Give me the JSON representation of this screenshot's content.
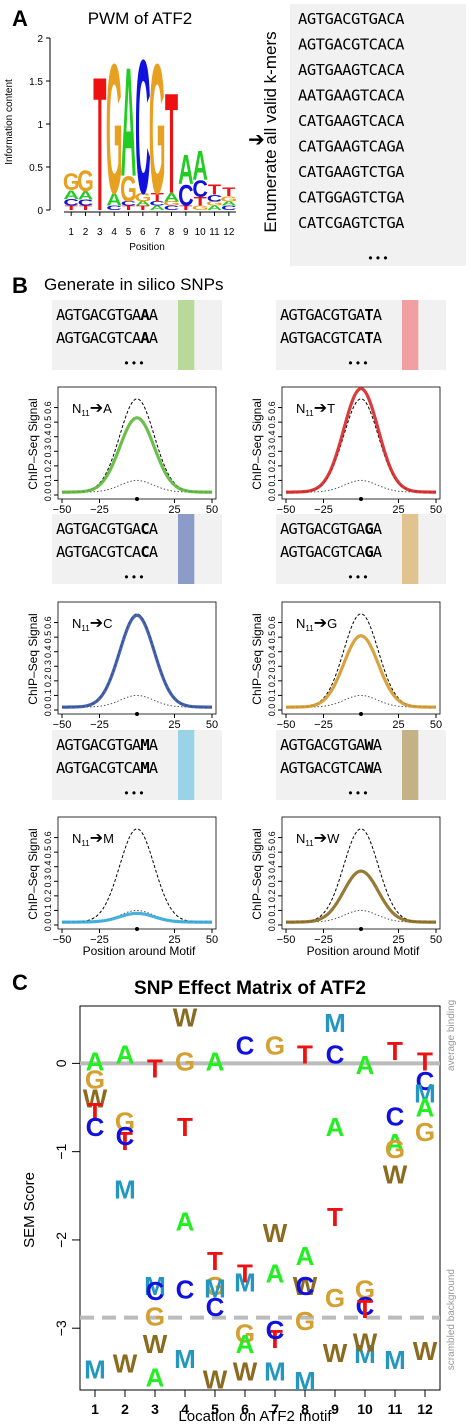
{
  "panel_a": {
    "label": "A",
    "logo": {
      "title": "PWM of ATF2",
      "ylabel": "Information content",
      "xlabel": "Position",
      "ylim": [
        0,
        2
      ],
      "yticks": [
        "0",
        "0.5",
        "1",
        "1.5",
        "2"
      ],
      "positions": [
        "1",
        "2",
        "3",
        "4",
        "5",
        "6",
        "7",
        "8",
        "9",
        "10",
        "11",
        "12"
      ],
      "stacks": [
        [
          [
            "T",
            0.05
          ],
          [
            "C",
            0.08
          ],
          [
            "A",
            0.1
          ],
          [
            "G",
            0.2
          ]
        ],
        [
          [
            "T",
            0.05
          ],
          [
            "C",
            0.07
          ],
          [
            "A",
            0.1
          ],
          [
            "G",
            0.25
          ]
        ],
        [
          [
            "T",
            1.6
          ]
        ],
        [
          [
            "C",
            0.05
          ],
          [
            "A",
            0.15
          ],
          [
            "G",
            1.55
          ]
        ],
        [
          [
            "T",
            0.05
          ],
          [
            "C",
            0.05
          ],
          [
            "G",
            0.3
          ],
          [
            "A",
            1.3
          ]
        ],
        [
          [
            "T",
            0.05
          ],
          [
            "A",
            0.05
          ],
          [
            "G",
            0.1
          ],
          [
            "C",
            1.6
          ]
        ],
        [
          [
            "A",
            0.05
          ],
          [
            "C",
            0.05
          ],
          [
            "T",
            0.1
          ],
          [
            "G",
            1.55
          ]
        ],
        [
          [
            "C",
            0.05
          ],
          [
            "G",
            0.05
          ],
          [
            "A",
            0.1
          ],
          [
            "T",
            1.2
          ]
        ],
        [
          [
            "T",
            0.05
          ],
          [
            "C",
            0.25
          ],
          [
            "A",
            0.35
          ]
        ],
        [
          [
            "G",
            0.05
          ],
          [
            "T",
            0.1
          ],
          [
            "C",
            0.2
          ],
          [
            "A",
            0.35
          ]
        ],
        [
          [
            "A",
            0.05
          ],
          [
            "G",
            0.05
          ],
          [
            "C",
            0.08
          ],
          [
            "T",
            0.12
          ]
        ],
        [
          [
            "C",
            0.05
          ],
          [
            "A",
            0.05
          ],
          [
            "G",
            0.06
          ],
          [
            "T",
            0.1
          ]
        ]
      ]
    },
    "arrow_label": "Enumerate all valid k-mers",
    "kmers": [
      "AGTGACGTGACA",
      "AGTGACGTCACA",
      "AGTGAAGTCACA",
      "AATGAAGTCACA",
      "CATGAAGTCACA",
      "CATGAAGTCAGA",
      "CATGAAGTCTGA",
      "CATGGAGTCTGA",
      "CATCGAGTCTGA"
    ],
    "ellipsis": "• • •"
  },
  "panel_b": {
    "label": "B",
    "title": "Generate in silico SNPs",
    "ylabel": "ChIP–Seq Signal",
    "xlabel": "Position around Motif",
    "xticks": [
      "−50",
      "−25",
      "25",
      "50"
    ],
    "yticks": [
      "0.0",
      "0.1",
      "0.2",
      "0.3",
      "0.4",
      "0.5",
      "0.6"
    ],
    "ellipsis": "• • •",
    "sub_n": "N",
    "sub_idx": "11",
    "arrow": "➔",
    "subpanels": [
      {
        "seq_prefix_1": "AGTGACGTGA",
        "seq_prefix_2": "AGTGACGTCA",
        "base": "A",
        "suffix": "A",
        "highlight": "#b9d99a",
        "line_color": "#5cb83a",
        "peak": 0.52,
        "mark": "A"
      },
      {
        "seq_prefix_1": "AGTGACGTGA",
        "seq_prefix_2": "AGTGACGTCA",
        "base": "T",
        "suffix": "A",
        "highlight": "#f0a0a0",
        "line_color": "#d62728",
        "peak": 0.72,
        "mark": "T"
      },
      {
        "seq_prefix_1": "AGTGACGTGA",
        "seq_prefix_2": "AGTGACGTCA",
        "base": "C",
        "suffix": "A",
        "highlight": "#8d9bc9",
        "line_color": "#3454a4",
        "peak": 0.64,
        "mark": "C"
      },
      {
        "seq_prefix_1": "AGTGACGTGA",
        "seq_prefix_2": "AGTGACGTCA",
        "base": "G",
        "suffix": "A",
        "highlight": "#e0c38f",
        "line_color": "#d39a2a",
        "peak": 0.5,
        "mark": "G"
      },
      {
        "seq_prefix_1": "AGTGACGTGA",
        "seq_prefix_2": "AGTGACGTCA",
        "base": "M",
        "suffix": "A",
        "highlight": "#9ad3e8",
        "line_color": "#35a8dc",
        "peak": 0.07,
        "mark": "M"
      },
      {
        "seq_prefix_1": "AGTGACGTGA",
        "seq_prefix_2": "AGTGACGTCA",
        "base": "W",
        "suffix": "A",
        "highlight": "#c2b286",
        "line_color": "#8b6b1f",
        "peak": 0.36,
        "mark": "W"
      }
    ]
  },
  "chart_data": {
    "type": "scatter",
    "title": "SNP Effect Matrix of ATF2",
    "xlabel": "Location on ATF2 motif",
    "ylabel": "SEM Score",
    "xlim": [
      0.5,
      12.5
    ],
    "ylim": [
      -3.7,
      0.65
    ],
    "xticks": [
      "1",
      "2",
      "3",
      "4",
      "5",
      "6",
      "7",
      "8",
      "9",
      "10",
      "11",
      "12"
    ],
    "yticks": [
      {
        "v": 0,
        "t": "0"
      },
      {
        "v": -1,
        "t": "−1"
      },
      {
        "v": -2,
        "t": "−2"
      },
      {
        "v": -3,
        "t": "−3"
      }
    ],
    "reference_lines": [
      {
        "y": 0,
        "label": "average binding"
      },
      {
        "y": -2.88,
        "label": "scrambled background"
      }
    ],
    "letter_colors": {
      "A": "#22ee22",
      "C": "#1111dd",
      "G": "#d4a032",
      "T": "#ee1111",
      "M": "#2596be",
      "W": "#8b6b1f"
    },
    "points": [
      {
        "x": 1,
        "l": "A",
        "y": 0.02
      },
      {
        "x": 1,
        "l": "G",
        "y": -0.18
      },
      {
        "x": 1,
        "l": "W",
        "y": -0.4
      },
      {
        "x": 1,
        "l": "T",
        "y": -0.55
      },
      {
        "x": 1,
        "l": "C",
        "y": -0.72
      },
      {
        "x": 1,
        "l": "M",
        "y": -3.47
      },
      {
        "x": 2,
        "l": "A",
        "y": 0.1
      },
      {
        "x": 2,
        "l": "G",
        "y": -0.66
      },
      {
        "x": 2,
        "l": "T",
        "y": -0.88
      },
      {
        "x": 2,
        "l": "C",
        "y": -0.82
      },
      {
        "x": 2,
        "l": "M",
        "y": -1.43
      },
      {
        "x": 2,
        "l": "W",
        "y": -3.4
      },
      {
        "x": 3,
        "l": "T",
        "y": -0.06
      },
      {
        "x": 3,
        "l": "M",
        "y": -2.52
      },
      {
        "x": 3,
        "l": "C",
        "y": -2.58
      },
      {
        "x": 3,
        "l": "G",
        "y": -2.87
      },
      {
        "x": 3,
        "l": "W",
        "y": -3.18
      },
      {
        "x": 3,
        "l": "A",
        "y": -3.56
      },
      {
        "x": 4,
        "l": "W",
        "y": 0.52
      },
      {
        "x": 4,
        "l": "G",
        "y": 0.02
      },
      {
        "x": 4,
        "l": "T",
        "y": -0.72
      },
      {
        "x": 4,
        "l": "A",
        "y": -1.79
      },
      {
        "x": 4,
        "l": "C",
        "y": -2.56
      },
      {
        "x": 4,
        "l": "M",
        "y": -3.35
      },
      {
        "x": 5,
        "l": "A",
        "y": 0.02
      },
      {
        "x": 5,
        "l": "T",
        "y": -2.24
      },
      {
        "x": 5,
        "l": "G",
        "y": -2.52
      },
      {
        "x": 5,
        "l": "M",
        "y": -2.55
      },
      {
        "x": 5,
        "l": "C",
        "y": -2.76
      },
      {
        "x": 5,
        "l": "W",
        "y": -3.58
      },
      {
        "x": 6,
        "l": "C",
        "y": 0.2
      },
      {
        "x": 6,
        "l": "T",
        "y": -2.38
      },
      {
        "x": 6,
        "l": "M",
        "y": -2.48
      },
      {
        "x": 6,
        "l": "G",
        "y": -3.06
      },
      {
        "x": 6,
        "l": "A",
        "y": -3.18
      },
      {
        "x": 6,
        "l": "W",
        "y": -3.49
      },
      {
        "x": 7,
        "l": "G",
        "y": 0.2
      },
      {
        "x": 7,
        "l": "W",
        "y": -1.92
      },
      {
        "x": 7,
        "l": "A",
        "y": -2.38
      },
      {
        "x": 7,
        "l": "T",
        "y": -3.12
      },
      {
        "x": 7,
        "l": "C",
        "y": -3.02
      },
      {
        "x": 7,
        "l": "M",
        "y": -3.49
      },
      {
        "x": 8,
        "l": "T",
        "y": 0.1
      },
      {
        "x": 8,
        "l": "A",
        "y": -2.18
      },
      {
        "x": 8,
        "l": "W",
        "y": -2.52
      },
      {
        "x": 8,
        "l": "C",
        "y": -2.52
      },
      {
        "x": 8,
        "l": "G",
        "y": -2.92
      },
      {
        "x": 8,
        "l": "M",
        "y": -3.6
      },
      {
        "x": 9,
        "l": "M",
        "y": 0.46
      },
      {
        "x": 9,
        "l": "C",
        "y": 0.1
      },
      {
        "x": 9,
        "l": "A",
        "y": -0.72
      },
      {
        "x": 9,
        "l": "T",
        "y": -1.74
      },
      {
        "x": 9,
        "l": "G",
        "y": -2.66
      },
      {
        "x": 9,
        "l": "W",
        "y": -3.28
      },
      {
        "x": 10,
        "l": "A",
        "y": -0.02
      },
      {
        "x": 10,
        "l": "G",
        "y": -2.56
      },
      {
        "x": 10,
        "l": "C",
        "y": -2.75
      },
      {
        "x": 10,
        "l": "T",
        "y": -2.78
      },
      {
        "x": 10,
        "l": "M",
        "y": -3.29
      },
      {
        "x": 10,
        "l": "W",
        "y": -3.16
      },
      {
        "x": 11,
        "l": "T",
        "y": 0.14
      },
      {
        "x": 11,
        "l": "C",
        "y": -0.6
      },
      {
        "x": 11,
        "l": "A",
        "y": -0.9
      },
      {
        "x": 11,
        "l": "G",
        "y": -0.97
      },
      {
        "x": 11,
        "l": "W",
        "y": -1.26
      },
      {
        "x": 11,
        "l": "M",
        "y": -3.36
      },
      {
        "x": 12,
        "l": "T",
        "y": 0.02
      },
      {
        "x": 12,
        "l": "C",
        "y": -0.2
      },
      {
        "x": 12,
        "l": "M",
        "y": -0.34
      },
      {
        "x": 12,
        "l": "A",
        "y": -0.5
      },
      {
        "x": 12,
        "l": "G",
        "y": -0.78
      },
      {
        "x": 12,
        "l": "W",
        "y": -3.26
      }
    ]
  }
}
